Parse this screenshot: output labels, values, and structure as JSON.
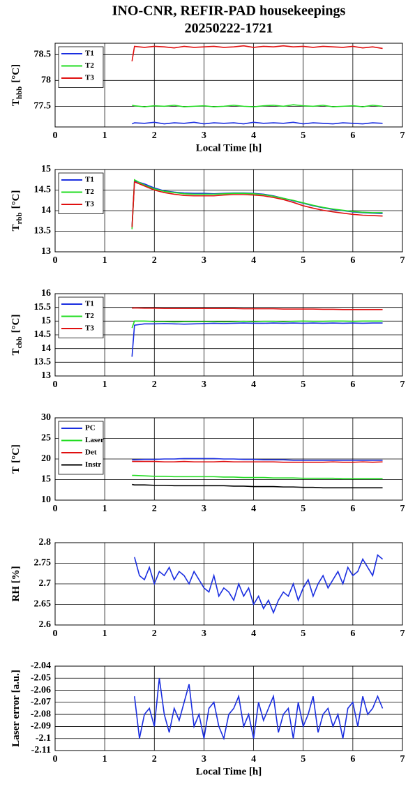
{
  "title": "INO-CNR, REFIR-PAD housekeepings",
  "subtitle": "20250222-1721",
  "chart_data": [
    {
      "type": "line",
      "ylabel": "T",
      "ylabel_sub": "hbb",
      "ylabel_unit": "[°C]",
      "xlabel": "Local Time [h]",
      "xlim": [
        0,
        7
      ],
      "xticks": [
        0,
        1,
        2,
        3,
        4,
        5,
        6,
        7
      ],
      "ylim": [
        77.1,
        78.72
      ],
      "yticks": [
        77.5,
        78,
        78.5
      ],
      "grid": true,
      "legend": "upper left",
      "x": [
        1.55,
        1.6,
        1.8,
        2.0,
        2.2,
        2.4,
        2.6,
        2.8,
        3.0,
        3.2,
        3.4,
        3.6,
        3.8,
        4.0,
        4.2,
        4.4,
        4.6,
        4.8,
        5.0,
        5.2,
        5.4,
        5.6,
        5.8,
        6.0,
        6.2,
        6.4,
        6.6
      ],
      "series": [
        {
          "name": "T1",
          "color": "#1a2ee0",
          "values": [
            77.16,
            77.18,
            77.17,
            77.19,
            77.16,
            77.18,
            77.17,
            77.19,
            77.16,
            77.18,
            77.17,
            77.18,
            77.16,
            77.19,
            77.17,
            77.18,
            77.17,
            77.19,
            77.16,
            77.18,
            77.17,
            77.16,
            77.18,
            77.17,
            77.16,
            77.18,
            77.17
          ]
        },
        {
          "name": "T2",
          "color": "#22dd22",
          "values": [
            77.52,
            77.51,
            77.49,
            77.51,
            77.5,
            77.52,
            77.49,
            77.5,
            77.51,
            77.49,
            77.5,
            77.52,
            77.5,
            77.49,
            77.51,
            77.52,
            77.5,
            77.53,
            77.51,
            77.5,
            77.52,
            77.49,
            77.5,
            77.51,
            77.49,
            77.52,
            77.5
          ]
        },
        {
          "name": "T3",
          "color": "#e01010",
          "values": [
            78.37,
            78.66,
            78.64,
            78.66,
            78.65,
            78.63,
            78.66,
            78.64,
            78.65,
            78.66,
            78.64,
            78.65,
            78.67,
            78.64,
            78.66,
            78.65,
            78.67,
            78.65,
            78.66,
            78.64,
            78.66,
            78.65,
            78.64,
            78.66,
            78.63,
            78.65,
            78.62
          ]
        }
      ]
    },
    {
      "type": "line",
      "ylabel": "T",
      "ylabel_sub": "rbb",
      "ylabel_unit": "[°C]",
      "xlim": [
        0,
        7
      ],
      "xticks": [
        0,
        1,
        2,
        3,
        4,
        5,
        6,
        7
      ],
      "ylim": [
        13,
        15
      ],
      "yticks": [
        13,
        13.5,
        14,
        14.5,
        15
      ],
      "grid": true,
      "legend": "upper left",
      "x": [
        1.55,
        1.6,
        1.8,
        2.0,
        2.2,
        2.4,
        2.6,
        2.8,
        3.0,
        3.2,
        3.4,
        3.6,
        3.8,
        4.0,
        4.2,
        4.4,
        4.6,
        4.8,
        5.0,
        5.2,
        5.4,
        5.6,
        5.8,
        6.0,
        6.2,
        6.4,
        6.6
      ],
      "series": [
        {
          "name": "T1",
          "color": "#1a2ee0",
          "values": [
            13.6,
            14.72,
            14.65,
            14.55,
            14.48,
            14.45,
            14.43,
            14.42,
            14.42,
            14.41,
            14.42,
            14.43,
            14.43,
            14.42,
            14.4,
            14.36,
            14.3,
            14.24,
            14.18,
            14.12,
            14.07,
            14.03,
            14.0,
            13.97,
            13.95,
            13.94,
            13.93
          ]
        },
        {
          "name": "T2",
          "color": "#22dd22",
          "values": [
            13.55,
            14.75,
            14.62,
            14.53,
            14.47,
            14.44,
            14.41,
            14.4,
            14.4,
            14.4,
            14.41,
            14.42,
            14.42,
            14.41,
            14.39,
            14.35,
            14.3,
            14.25,
            14.19,
            14.13,
            14.08,
            14.04,
            14.01,
            13.98,
            13.96,
            13.95,
            13.95
          ]
        },
        {
          "name": "T3",
          "color": "#e01010",
          "values": [
            13.6,
            14.7,
            14.6,
            14.5,
            14.44,
            14.4,
            14.37,
            14.36,
            14.36,
            14.36,
            14.38,
            14.39,
            14.39,
            14.38,
            14.36,
            14.32,
            14.27,
            14.2,
            14.12,
            14.06,
            14.01,
            13.97,
            13.94,
            13.91,
            13.89,
            13.88,
            13.87
          ]
        }
      ]
    },
    {
      "type": "line",
      "ylabel": "T",
      "ylabel_sub": "cbb",
      "ylabel_unit": "[°C]",
      "xlim": [
        0,
        7
      ],
      "xticks": [
        0,
        1,
        2,
        3,
        4,
        5,
        6,
        7
      ],
      "ylim": [
        13,
        16
      ],
      "yticks": [
        13,
        13.5,
        14,
        14.5,
        15,
        15.5,
        16
      ],
      "grid": true,
      "legend": "upper left",
      "x": [
        1.55,
        1.6,
        1.8,
        2.0,
        2.2,
        2.4,
        2.6,
        2.8,
        3.0,
        3.2,
        3.4,
        3.6,
        3.8,
        4.0,
        4.2,
        4.4,
        4.6,
        4.8,
        5.0,
        5.2,
        5.4,
        5.6,
        5.8,
        6.0,
        6.2,
        6.4,
        6.6
      ],
      "series": [
        {
          "name": "T1",
          "color": "#1a2ee0",
          "values": [
            13.7,
            14.85,
            14.9,
            14.9,
            14.91,
            14.9,
            14.89,
            14.9,
            14.91,
            14.92,
            14.91,
            14.92,
            14.93,
            14.92,
            14.92,
            14.93,
            14.92,
            14.93,
            14.92,
            14.93,
            14.92,
            14.93,
            14.92,
            14.93,
            14.92,
            14.93,
            14.93
          ]
        },
        {
          "name": "T2",
          "color": "#22dd22",
          "values": [
            14.75,
            15.0,
            15.0,
            14.98,
            14.98,
            14.97,
            14.98,
            14.98,
            14.98,
            14.98,
            14.97,
            14.98,
            14.99,
            14.98,
            14.99,
            14.99,
            14.98,
            14.99,
            15.0,
            14.99,
            14.99,
            15.0,
            15.0,
            14.99,
            15.0,
            15.0,
            15.0
          ]
        },
        {
          "name": "T3",
          "color": "#e01010",
          "values": [
            15.47,
            15.48,
            15.47,
            15.47,
            15.46,
            15.46,
            15.46,
            15.46,
            15.46,
            15.46,
            15.46,
            15.46,
            15.45,
            15.45,
            15.45,
            15.45,
            15.44,
            15.44,
            15.44,
            15.44,
            15.43,
            15.43,
            15.42,
            15.42,
            15.42,
            15.42,
            15.42
          ]
        }
      ]
    },
    {
      "type": "line",
      "ylabel": "T",
      "ylabel_unit": "[°C]",
      "xlim": [
        0,
        7
      ],
      "xticks": [
        0,
        1,
        2,
        3,
        4,
        5,
        6,
        7
      ],
      "ylim": [
        10,
        30
      ],
      "yticks": [
        10,
        15,
        20,
        25,
        30
      ],
      "grid": true,
      "legend": "upper left",
      "x": [
        1.55,
        1.6,
        1.8,
        2.0,
        2.2,
        2.4,
        2.6,
        2.8,
        3.0,
        3.2,
        3.4,
        3.6,
        3.8,
        4.0,
        4.2,
        4.4,
        4.6,
        4.8,
        5.0,
        5.2,
        5.4,
        5.6,
        5.8,
        6.0,
        6.2,
        6.4,
        6.6
      ],
      "series": [
        {
          "name": "PC",
          "color": "#1a2ee0",
          "values": [
            19.8,
            19.8,
            19.9,
            19.9,
            20.0,
            20.0,
            20.1,
            20.1,
            20.1,
            20.1,
            20.0,
            20.0,
            19.9,
            19.9,
            19.8,
            19.8,
            19.8,
            19.7,
            19.7,
            19.7,
            19.7,
            19.7,
            19.7,
            19.7,
            19.7,
            19.7,
            19.7
          ]
        },
        {
          "name": "Laser",
          "color": "#22dd22",
          "values": [
            16.0,
            16.0,
            15.9,
            15.8,
            15.8,
            15.7,
            15.7,
            15.7,
            15.7,
            15.7,
            15.6,
            15.6,
            15.5,
            15.5,
            15.5,
            15.4,
            15.4,
            15.4,
            15.3,
            15.3,
            15.3,
            15.3,
            15.2,
            15.2,
            15.2,
            15.2,
            15.2
          ]
        },
        {
          "name": "Det",
          "color": "#e01010",
          "values": [
            19.4,
            19.4,
            19.4,
            19.4,
            19.3,
            19.3,
            19.4,
            19.3,
            19.3,
            19.3,
            19.4,
            19.3,
            19.3,
            19.3,
            19.3,
            19.3,
            19.2,
            19.2,
            19.2,
            19.2,
            19.2,
            19.3,
            19.2,
            19.2,
            19.3,
            19.2,
            19.3
          ]
        },
        {
          "name": "Instr",
          "color": "#000000",
          "values": [
            13.8,
            13.7,
            13.7,
            13.6,
            13.6,
            13.5,
            13.5,
            13.5,
            13.5,
            13.5,
            13.5,
            13.4,
            13.4,
            13.3,
            13.3,
            13.3,
            13.2,
            13.2,
            13.1,
            13.1,
            13.0,
            13.0,
            13.0,
            13.0,
            13.0,
            13.0,
            13.0
          ]
        }
      ]
    },
    {
      "type": "line",
      "ylabel": "RH [%]",
      "xlim": [
        0,
        7
      ],
      "xticks": [
        0,
        1,
        2,
        3,
        4,
        5,
        6,
        7
      ],
      "ylim": [
        2.6,
        2.8
      ],
      "yticks": [
        2.6,
        2.65,
        2.7,
        2.75,
        2.8
      ],
      "grid": true,
      "x": [
        1.6,
        1.7,
        1.8,
        1.9,
        2.0,
        2.1,
        2.2,
        2.3,
        2.4,
        2.5,
        2.6,
        2.7,
        2.8,
        2.9,
        3.0,
        3.1,
        3.2,
        3.3,
        3.4,
        3.5,
        3.6,
        3.7,
        3.8,
        3.9,
        4.0,
        4.1,
        4.2,
        4.3,
        4.4,
        4.5,
        4.6,
        4.7,
        4.8,
        4.9,
        5.0,
        5.1,
        5.2,
        5.3,
        5.4,
        5.5,
        5.6,
        5.7,
        5.8,
        5.9,
        6.0,
        6.1,
        6.2,
        6.3,
        6.4,
        6.5,
        6.6
      ],
      "series": [
        {
          "color": "#1a2ee0",
          "values": [
            2.765,
            2.72,
            2.71,
            2.74,
            2.7,
            2.73,
            2.72,
            2.74,
            2.71,
            2.73,
            2.72,
            2.7,
            2.73,
            2.71,
            2.69,
            2.68,
            2.72,
            2.67,
            2.69,
            2.68,
            2.66,
            2.7,
            2.67,
            2.69,
            2.65,
            2.67,
            2.64,
            2.66,
            2.63,
            2.66,
            2.68,
            2.67,
            2.7,
            2.66,
            2.69,
            2.71,
            2.67,
            2.7,
            2.72,
            2.69,
            2.71,
            2.73,
            2.7,
            2.74,
            2.72,
            2.73,
            2.76,
            2.74,
            2.72,
            2.77,
            2.76
          ]
        }
      ]
    },
    {
      "type": "line",
      "ylabel": "Laser error [a.u.]",
      "xlabel": "Local Time [h]",
      "xlim": [
        0,
        7
      ],
      "xticks": [
        0,
        1,
        2,
        3,
        4,
        5,
        6,
        7
      ],
      "ylim": [
        -2.11,
        -2.04
      ],
      "yticks": [
        -2.11,
        -2.1,
        -2.09,
        -2.08,
        -2.07,
        -2.06,
        -2.05,
        -2.04
      ],
      "grid": true,
      "x": [
        1.6,
        1.7,
        1.8,
        1.9,
        2.0,
        2.1,
        2.2,
        2.3,
        2.4,
        2.5,
        2.6,
        2.7,
        2.8,
        2.9,
        3.0,
        3.1,
        3.2,
        3.3,
        3.4,
        3.5,
        3.6,
        3.7,
        3.8,
        3.9,
        4.0,
        4.1,
        4.2,
        4.3,
        4.4,
        4.5,
        4.6,
        4.7,
        4.8,
        4.9,
        5.0,
        5.1,
        5.2,
        5.3,
        5.4,
        5.5,
        5.6,
        5.7,
        5.8,
        5.9,
        6.0,
        6.1,
        6.2,
        6.3,
        6.4,
        6.5,
        6.6
      ],
      "series": [
        {
          "color": "#1a2ee0",
          "values": [
            -2.065,
            -2.1,
            -2.08,
            -2.075,
            -2.09,
            -2.05,
            -2.08,
            -2.095,
            -2.075,
            -2.085,
            -2.07,
            -2.055,
            -2.09,
            -2.08,
            -2.1,
            -2.075,
            -2.07,
            -2.09,
            -2.1,
            -2.08,
            -2.075,
            -2.065,
            -2.09,
            -2.08,
            -2.1,
            -2.07,
            -2.085,
            -2.075,
            -2.065,
            -2.095,
            -2.08,
            -2.075,
            -2.1,
            -2.07,
            -2.09,
            -2.08,
            -2.065,
            -2.095,
            -2.08,
            -2.075,
            -2.09,
            -2.08,
            -2.1,
            -2.075,
            -2.07,
            -2.09,
            -2.065,
            -2.08,
            -2.075,
            -2.065,
            -2.075
          ]
        }
      ]
    }
  ]
}
